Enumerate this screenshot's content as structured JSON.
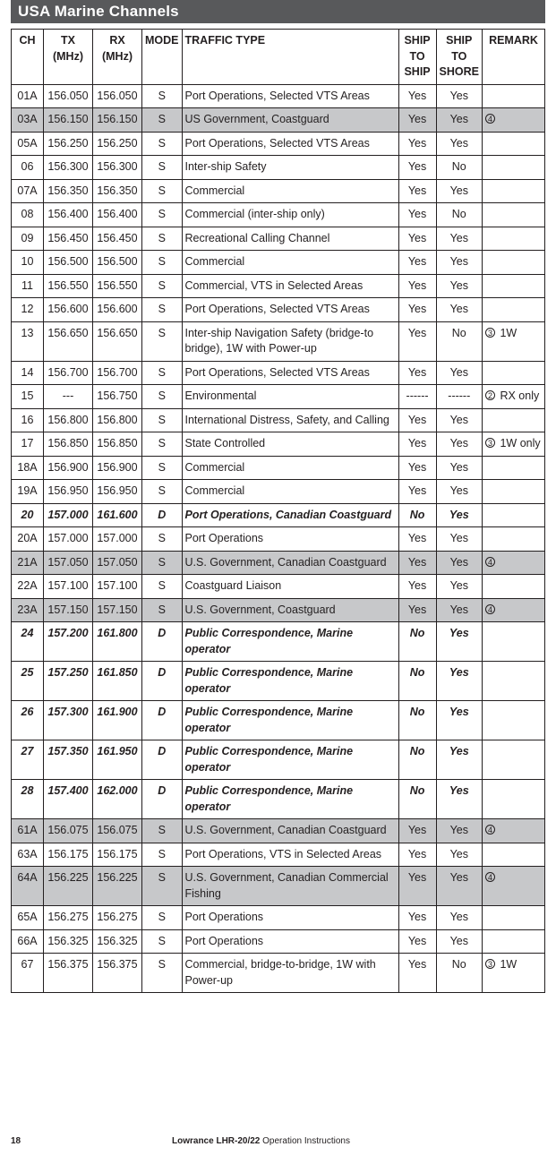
{
  "title": "USA Marine Channels",
  "columns": [
    "CH",
    "TX (MHz)",
    "RX (MHz)",
    "MODE",
    "TRAFFIC TYPE",
    "SHIP TO SHIP",
    "SHIP TO SHORE",
    "REMARK"
  ],
  "rows": [
    {
      "ch": "01A",
      "tx": "156.050",
      "rx": "156.050",
      "mode": "S",
      "type": "Port Operations, Selected VTS Areas",
      "sts": "Yes",
      "stsh": "Yes",
      "remark": ""
    },
    {
      "ch": "03A",
      "tx": "156.150",
      "rx": "156.150",
      "mode": "S",
      "type": "US Government, Coastguard",
      "sts": "Yes",
      "stsh": "Yes",
      "remark_sym": "4",
      "shade": true
    },
    {
      "ch": "05A",
      "tx": "156.250",
      "rx": "156.250",
      "mode": "S",
      "type": "Port Operations, Selected VTS Areas",
      "sts": "Yes",
      "stsh": "Yes",
      "remark": ""
    },
    {
      "ch": "06",
      "tx": "156.300",
      "rx": "156.300",
      "mode": "S",
      "type": "Inter-ship Safety",
      "sts": "Yes",
      "stsh": "No",
      "remark": ""
    },
    {
      "ch": "07A",
      "tx": "156.350",
      "rx": "156.350",
      "mode": "S",
      "type": "Commercial",
      "sts": "Yes",
      "stsh": "Yes",
      "remark": ""
    },
    {
      "ch": "08",
      "tx": "156.400",
      "rx": "156.400",
      "mode": "S",
      "type": "Commercial (inter-ship only)",
      "sts": "Yes",
      "stsh": "No",
      "remark": ""
    },
    {
      "ch": "09",
      "tx": "156.450",
      "rx": "156.450",
      "mode": "S",
      "type": "Recreational Calling Channel",
      "sts": "Yes",
      "stsh": "Yes",
      "remark": ""
    },
    {
      "ch": "10",
      "tx": "156.500",
      "rx": "156.500",
      "mode": "S",
      "type": "Commercial",
      "sts": "Yes",
      "stsh": "Yes",
      "remark": ""
    },
    {
      "ch": "11",
      "tx": "156.550",
      "rx": "156.550",
      "mode": "S",
      "type": "Commercial, VTS in Selected Areas",
      "sts": "Yes",
      "stsh": "Yes",
      "remark": ""
    },
    {
      "ch": "12",
      "tx": "156.600",
      "rx": "156.600",
      "mode": "S",
      "type": "Port Operations, Selected VTS Areas",
      "sts": "Yes",
      "stsh": "Yes",
      "remark": ""
    },
    {
      "ch": "13",
      "tx": "156.650",
      "rx": "156.650",
      "mode": "S",
      "type": "Inter-ship Navigation Safety (bridge-to bridge), 1W  with Power-up",
      "sts": "Yes",
      "stsh": "No",
      "remark_sym": "3",
      "remark_txt": "1W"
    },
    {
      "ch": "14",
      "tx": "156.700",
      "rx": "156.700",
      "mode": "S",
      "type": "Port Operations, Selected VTS Areas",
      "sts": "Yes",
      "stsh": "Yes",
      "remark": ""
    },
    {
      "ch": "15",
      "tx": "---",
      "rx": "156.750",
      "mode": "S",
      "type": "Environmental",
      "sts": "------",
      "stsh": "------",
      "remark_sym": "2",
      "remark_txt": "RX only"
    },
    {
      "ch": "16",
      "tx": "156.800",
      "rx": "156.800",
      "mode": "S",
      "type": "International Distress, Safety, and Calling",
      "sts": "Yes",
      "stsh": "Yes",
      "remark": "",
      "thick": true
    },
    {
      "ch": "17",
      "tx": "156.850",
      "rx": "156.850",
      "mode": "S",
      "type": "State Controlled",
      "sts": "Yes",
      "stsh": "Yes",
      "remark_sym": "3",
      "remark_txt": "1W only"
    },
    {
      "ch": "18A",
      "tx": "156.900",
      "rx": "156.900",
      "mode": "S",
      "type": "Commercial",
      "sts": "Yes",
      "stsh": "Yes",
      "remark": ""
    },
    {
      "ch": "19A",
      "tx": "156.950",
      "rx": "156.950",
      "mode": "S",
      "type": "Commercial",
      "sts": "Yes",
      "stsh": "Yes",
      "remark": ""
    },
    {
      "ch": "20",
      "tx": "157.000",
      "rx": "161.600",
      "mode": "D",
      "type": "Port Operations, Canadian Coastguard",
      "sts": "No",
      "stsh": "Yes",
      "remark": "",
      "bold": true
    },
    {
      "ch": "20A",
      "tx": "157.000",
      "rx": "157.000",
      "mode": "S",
      "type": "Port Operations",
      "sts": "Yes",
      "stsh": "Yes",
      "remark": ""
    },
    {
      "ch": "21A",
      "tx": "157.050",
      "rx": "157.050",
      "mode": "S",
      "type": "U.S. Government, Canadian Coastguard",
      "sts": "Yes",
      "stsh": "Yes",
      "remark_sym": "4",
      "shade": true
    },
    {
      "ch": "22A",
      "tx": "157.100",
      "rx": "157.100",
      "mode": "S",
      "type": "Coastguard Liaison",
      "sts": "Yes",
      "stsh": "Yes",
      "remark": ""
    },
    {
      "ch": "23A",
      "tx": "157.150",
      "rx": "157.150",
      "mode": "S",
      "type": "U.S. Government, Coastguard",
      "sts": "Yes",
      "stsh": "Yes",
      "remark_sym": "4",
      "shade": true
    },
    {
      "ch": "24",
      "tx": "157.200",
      "rx": "161.800",
      "mode": "D",
      "type": "Public Correspondence, Marine operator",
      "sts": "No",
      "stsh": "Yes",
      "remark": "",
      "bold": true
    },
    {
      "ch": "25",
      "tx": "157.250",
      "rx": "161.850",
      "mode": "D",
      "type": "Public Correspondence, Marine operator",
      "sts": "No",
      "stsh": "Yes",
      "remark": "",
      "bold": true
    },
    {
      "ch": "26",
      "tx": "157.300",
      "rx": "161.900",
      "mode": "D",
      "type": "Public Correspondence, Marine operator",
      "sts": "No",
      "stsh": "Yes",
      "remark": "",
      "bold": true
    },
    {
      "ch": "27",
      "tx": "157.350",
      "rx": "161.950",
      "mode": "D",
      "type": "Public Correspondence, Marine operator",
      "sts": "No",
      "stsh": "Yes",
      "remark": "",
      "bold": true
    },
    {
      "ch": "28",
      "tx": "157.400",
      "rx": "162.000",
      "mode": "D",
      "type": "Public Correspondence, Marine operator",
      "sts": "No",
      "stsh": "Yes",
      "remark": "",
      "bold": true
    },
    {
      "ch": "61A",
      "tx": "156.075",
      "rx": "156.075",
      "mode": "S",
      "type": "U.S. Government, Canadian Coastguard",
      "sts": "Yes",
      "stsh": "Yes",
      "remark_sym": "4",
      "shade": true
    },
    {
      "ch": "63A",
      "tx": "156.175",
      "rx": "156.175",
      "mode": "S",
      "type": "Port Operations, VTS in Selected Areas",
      "sts": "Yes",
      "stsh": "Yes",
      "remark": ""
    },
    {
      "ch": "64A",
      "tx": "156.225",
      "rx": "156.225",
      "mode": "S",
      "type": "U.S. Government, Canadian Commercial Fishing",
      "sts": "Yes",
      "stsh": "Yes",
      "remark_sym": "4",
      "shade": true
    },
    {
      "ch": "65A",
      "tx": "156.275",
      "rx": "156.275",
      "mode": "S",
      "type": "Port Operations",
      "sts": "Yes",
      "stsh": "Yes",
      "remark": ""
    },
    {
      "ch": "66A",
      "tx": "156.325",
      "rx": "156.325",
      "mode": "S",
      "type": "Port Operations",
      "sts": "Yes",
      "stsh": "Yes",
      "remark": ""
    },
    {
      "ch": "67",
      "tx": "156.375",
      "rx": "156.375",
      "mode": "S",
      "type": "Commercial, bridge-to-bridge, 1W with Power-up",
      "sts": "Yes",
      "stsh": "No",
      "remark_sym": "3",
      "remark_txt": "1W"
    }
  ],
  "footer": {
    "page": "18",
    "product": "Lowrance LHR-20/22",
    "suffix": "  Operation Instructions"
  }
}
